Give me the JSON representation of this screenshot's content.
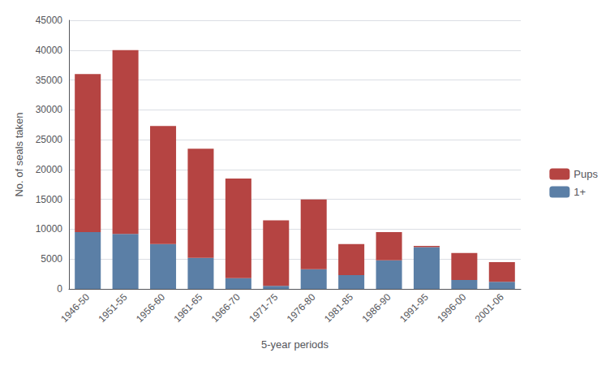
{
  "chart_data": {
    "type": "bar",
    "stacked": true,
    "categories": [
      "1946-50",
      "1951-55",
      "1956-60",
      "1961-65",
      "1966-70",
      "1971-75",
      "1976-80",
      "1981-85",
      "1986-90",
      "1991-95",
      "1996-00",
      "2001-06"
    ],
    "series": [
      {
        "name": "1+",
        "color": "#5b7fa6",
        "values": [
          9500,
          9200,
          7500,
          5200,
          1800,
          500,
          3300,
          2300,
          4800,
          7000,
          1500,
          1200
        ]
      },
      {
        "name": "Pups",
        "color": "#b54442",
        "values": [
          26500,
          30800,
          19800,
          18300,
          16700,
          11000,
          11700,
          5200,
          4700,
          200,
          4500,
          3300
        ]
      }
    ],
    "xlabel": "5-year periods",
    "ylabel": "No. of seals taken",
    "ylim": [
      0,
      45000
    ],
    "yticks": [
      0,
      5000,
      10000,
      15000,
      20000,
      25000,
      30000,
      35000,
      40000,
      45000
    ],
    "grid": true,
    "legend": "right"
  }
}
